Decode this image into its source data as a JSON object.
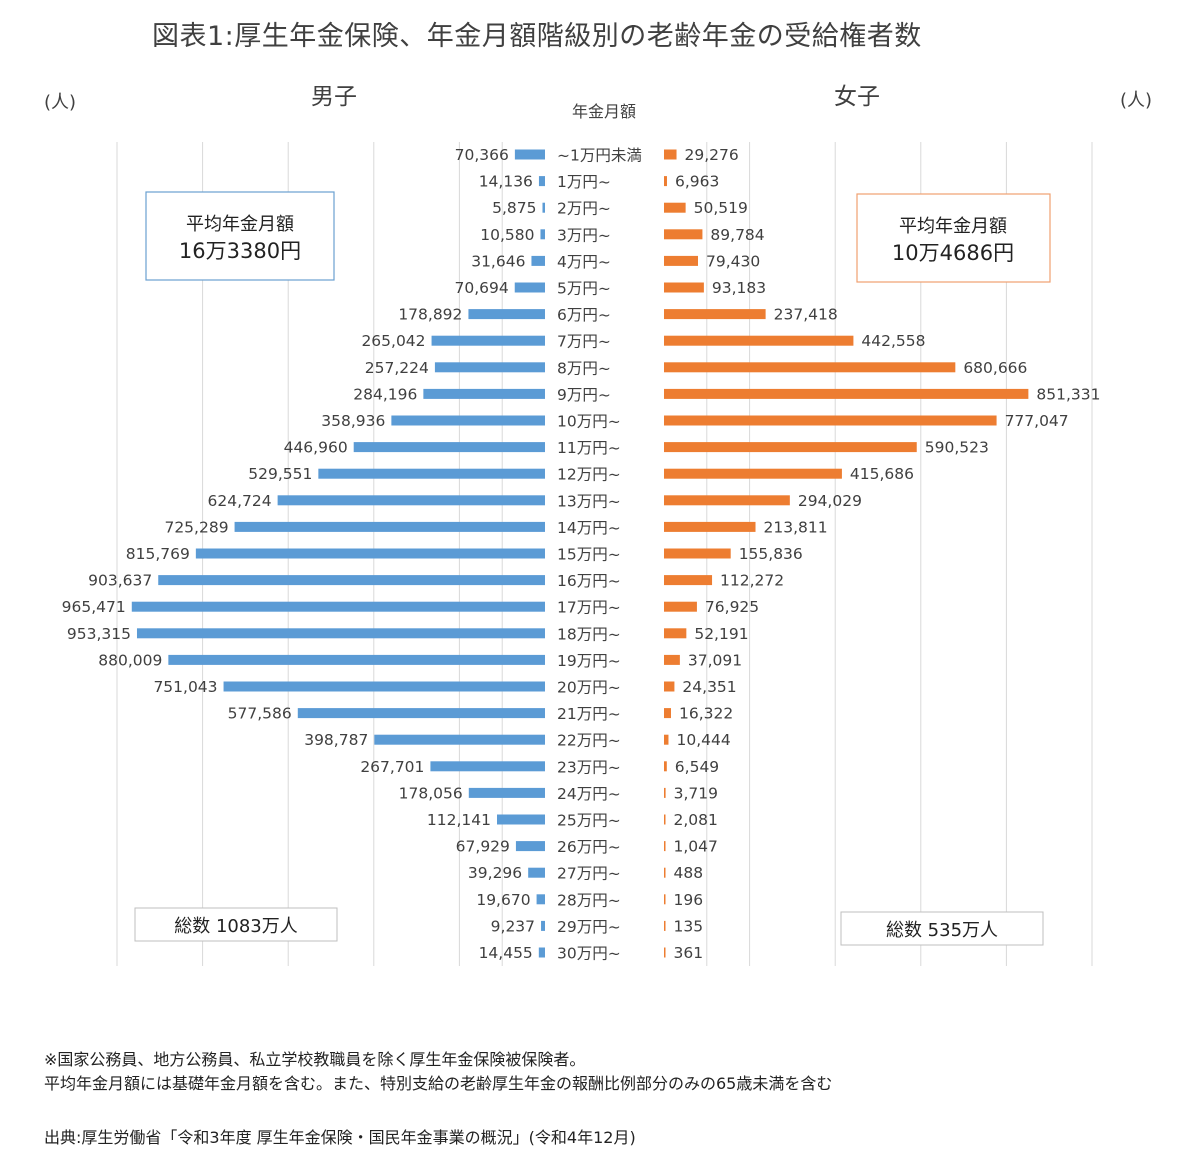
{
  "title": "図表1:厚生年金保険、年金月額階級別の老齢年金の受給権者数",
  "colors": {
    "male": "#5b9bd5",
    "female": "#ed7d31",
    "grid": "#d9d9d9"
  },
  "chart_data": {
    "type": "bar",
    "orientation": "horizontal",
    "layout": "population-pyramid",
    "category_label": "年金月額",
    "unit_left": "(人)",
    "unit_right": "(人)",
    "categories": [
      "~1万円未満",
      "1万円~",
      "2万円~",
      "3万円~",
      "4万円~",
      "5万円~",
      "6万円~",
      "7万円~",
      "8万円~",
      "9万円~",
      "10万円~",
      "11万円~",
      "12万円~",
      "13万円~",
      "14万円~",
      "15万円~",
      "16万円~",
      "17万円~",
      "18万円~",
      "19万円~",
      "20万円~",
      "21万円~",
      "22万円~",
      "23万円~",
      "24万円~",
      "25万円~",
      "26万円~",
      "27万円~",
      "28万円~",
      "29万円~",
      "30万円~"
    ],
    "series": [
      {
        "name": "男子",
        "side": "left",
        "values": [
          70366,
          14136,
          5875,
          10580,
          31646,
          70694,
          178892,
          265042,
          257224,
          284196,
          358936,
          446960,
          529551,
          624724,
          725289,
          815769,
          903637,
          965471,
          953315,
          880009,
          751043,
          577586,
          398787,
          267701,
          178056,
          112141,
          67929,
          39296,
          19670,
          9237,
          14455
        ],
        "labels": [
          "70,366",
          "14,136",
          "5,875",
          "10,580",
          "31,646",
          "70,694",
          "178,892",
          "265,042",
          "257,224",
          "284,196",
          "358,936",
          "446,960",
          "529,551",
          "624,724",
          "725,289",
          "815,769",
          "903,637",
          "965,471",
          "953,315",
          "880,009",
          "751,043",
          "577,586",
          "398,787",
          "267,701",
          "178,056",
          "112,141",
          "67,929",
          "39,296",
          "19,670",
          "9,237",
          "14,455"
        ]
      },
      {
        "name": "女子",
        "side": "right",
        "values": [
          29276,
          6963,
          50519,
          89784,
          79430,
          93183,
          237418,
          442558,
          680666,
          851331,
          777047,
          590523,
          415686,
          294029,
          213811,
          155836,
          112272,
          76925,
          52191,
          37091,
          24351,
          16322,
          10444,
          6549,
          3719,
          2081,
          1047,
          488,
          196,
          135,
          361
        ],
        "labels": [
          "29,276",
          "6,963",
          "50,519",
          "89,784",
          "79,430",
          "93,183",
          "237,418",
          "442,558",
          "680,666",
          "851,331",
          "777,047",
          "590,523",
          "415,686",
          "294,029",
          "213,811",
          "155,836",
          "112,272",
          "76,925",
          "52,191",
          "37,091",
          "24,351",
          "16,322",
          "10,444",
          "6,549",
          "3,719",
          "2,081",
          "1,047",
          "488",
          "196",
          "135",
          "361"
        ]
      }
    ],
    "xlim": [
      0,
      1000000
    ],
    "grid": true,
    "annotations": {
      "male_avg_label": "平均年金月額",
      "male_avg_value": "16万3380円",
      "female_avg_label": "平均年金月額",
      "female_avg_value": "10万4686円",
      "male_total": "総数 1083万人",
      "female_total": "総数 535万人"
    }
  },
  "notes": {
    "line1": "※国家公務員、地方公務員、私立学校教職員を除く厚生年金保険被保険者。",
    "line2": " 平均年金月額には基礎年金月額を含む。また、特別支給の老齢厚生年金の報酬比例部分のみの65歳未満を含む",
    "source": "出典:厚生労働省「令和3年度 厚生年金保険・国民年金事業の概況」(令和4年12月)"
  }
}
